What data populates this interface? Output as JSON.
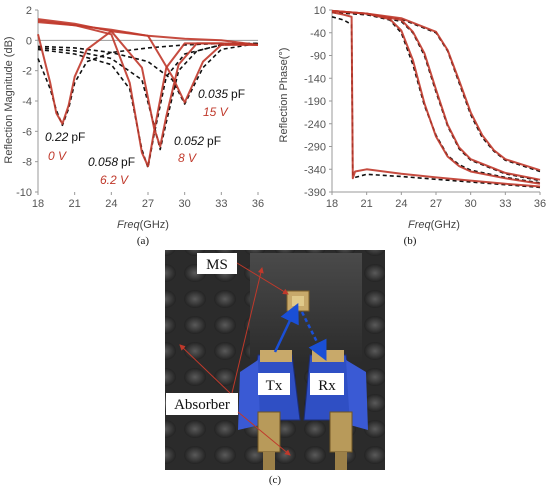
{
  "colors": {
    "measured": "#c0392b",
    "simulated": "#111111",
    "arrow": "#1a4fd6",
    "annot_red": "#c0392b"
  },
  "panel_a": {
    "caption": "(a)",
    "ylabel": "Reflection Magnitude (dB)",
    "xlabel_italic": "Freq",
    "xlabel_unit": "(GHz)",
    "annotations": [
      {
        "cap": "0.22",
        "unit": "pF",
        "volt": "0 V"
      },
      {
        "cap": "0.058",
        "unit": "pF",
        "volt": "6.2 V"
      },
      {
        "cap": "0.052",
        "unit": "pF",
        "volt": "8 V"
      },
      {
        "cap": "0.035",
        "unit": "pF",
        "volt": "15 V"
      }
    ]
  },
  "panel_b": {
    "caption": "(b)",
    "ylabel": "Reflection Phase(°)",
    "xlabel_italic": "Freq",
    "xlabel_unit": "(GHz)"
  },
  "panel_c": {
    "caption": "(c)",
    "labels": {
      "ms": "MS",
      "tx": "Tx",
      "rx": "Rx",
      "absorber": "Absorber"
    }
  },
  "chart_data": [
    {
      "type": "line",
      "panel": "a",
      "xlabel": "Freq(GHz)",
      "ylabel": "Reflection Magnitude (dB)",
      "xlim": [
        18,
        36
      ],
      "ylim": [
        -10,
        2
      ],
      "xticks": [
        18,
        21,
        24,
        27,
        30,
        33,
        36
      ],
      "yticks": [
        2,
        0,
        -2,
        -4,
        -6,
        -8,
        -10
      ],
      "grid": false,
      "series": [
        {
          "kind": "simulated",
          "x": [
            18,
            19,
            19.5,
            20,
            20.5,
            21,
            22,
            24,
            27,
            30,
            33,
            36
          ],
          "y": [
            -1.2,
            -3.2,
            -4.6,
            -5.6,
            -4.5,
            -2.8,
            -1.4,
            -0.8,
            -0.5,
            -0.3,
            -0.2,
            -0.2
          ]
        },
        {
          "kind": "simulated",
          "x": [
            18,
            21,
            24,
            25.5,
            26.5,
            27,
            27.5,
            28.5,
            30,
            33,
            36
          ],
          "y": [
            -0.6,
            -0.9,
            -1.6,
            -3.2,
            -7.2,
            -8.4,
            -6.2,
            -2.4,
            -0.9,
            -0.3,
            -0.2
          ]
        },
        {
          "kind": "simulated",
          "x": [
            18,
            21,
            24,
            26.5,
            27.5,
            28,
            28.5,
            29.5,
            31,
            33,
            36
          ],
          "y": [
            -0.5,
            -0.7,
            -1.2,
            -2.6,
            -5.6,
            -7.2,
            -5.4,
            -2.0,
            -0.7,
            -0.3,
            -0.2
          ]
        },
        {
          "kind": "simulated",
          "x": [
            18,
            21,
            24,
            27,
            29,
            30,
            30.5,
            31.5,
            33,
            36
          ],
          "y": [
            -0.4,
            -0.5,
            -0.8,
            -1.4,
            -2.6,
            -4.2,
            -3.4,
            -1.8,
            -0.6,
            -0.2
          ]
        },
        {
          "kind": "measured",
          "x": [
            18,
            19,
            19.5,
            20,
            20.5,
            21,
            22,
            24,
            27,
            30,
            33,
            36
          ],
          "y": [
            0.4,
            -2.8,
            -4.8,
            -5.5,
            -4.3,
            -2.4,
            -0.6,
            0.6,
            0.3,
            0.1,
            0,
            -0.3
          ]
        },
        {
          "kind": "measured",
          "x": [
            18,
            21,
            24,
            25.5,
            26.5,
            27,
            27.5,
            28.5,
            30,
            33,
            36
          ],
          "y": [
            1.3,
            1.0,
            0.4,
            -2.8,
            -7.4,
            -8.3,
            -6.0,
            -1.8,
            -0.2,
            -0.2,
            -0.3
          ]
        },
        {
          "kind": "measured",
          "x": [
            18,
            21,
            24,
            26.5,
            27.5,
            28,
            28.5,
            29.5,
            31,
            33,
            36
          ],
          "y": [
            1.4,
            1.1,
            0.6,
            -1.8,
            -5.8,
            -7.0,
            -5.0,
            -1.6,
            -0.2,
            -0.2,
            -0.3
          ]
        },
        {
          "kind": "measured",
          "x": [
            18,
            21,
            24,
            27,
            29,
            30,
            30.5,
            31.5,
            33,
            36
          ],
          "y": [
            1.2,
            1.0,
            0.7,
            0.3,
            -2.4,
            -4.1,
            -3.2,
            -1.4,
            -0.3,
            -0.3
          ]
        }
      ]
    },
    {
      "type": "line",
      "panel": "b",
      "xlabel": "Freq(GHz)",
      "ylabel": "Reflection Phase(°)",
      "xlim": [
        18,
        36
      ],
      "ylim": [
        -390,
        10
      ],
      "xticks": [
        18,
        21,
        24,
        27,
        30,
        33,
        36
      ],
      "yticks": [
        10,
        -40,
        -90,
        -140,
        -190,
        -240,
        -290,
        -340,
        -390
      ],
      "grid": false,
      "series": [
        {
          "kind": "simulated",
          "x": [
            18,
            19,
            19.7,
            19.8,
            20,
            21,
            24,
            27,
            30,
            33,
            36
          ],
          "y": [
            -5,
            -12,
            -22,
            -352,
            -358,
            -351,
            -356,
            -362,
            -368,
            -374,
            -380
          ]
        },
        {
          "kind": "simulated",
          "x": [
            18,
            21,
            23,
            24,
            25,
            26,
            27,
            28,
            29,
            30,
            33,
            36
          ],
          "y": [
            5,
            0,
            -12,
            -40,
            -110,
            -200,
            -265,
            -310,
            -330,
            -342,
            -358,
            -370
          ]
        },
        {
          "kind": "simulated",
          "x": [
            18,
            21,
            24,
            25,
            26,
            27,
            28,
            29,
            30,
            33,
            36
          ],
          "y": [
            5,
            0,
            -15,
            -40,
            -90,
            -170,
            -245,
            -295,
            -320,
            -350,
            -365
          ]
        },
        {
          "kind": "simulated",
          "x": [
            18,
            21,
            24,
            27,
            28,
            29,
            30,
            31,
            32,
            33,
            36
          ],
          "y": [
            5,
            0,
            -10,
            -40,
            -80,
            -150,
            -220,
            -270,
            -300,
            -320,
            -345
          ]
        },
        {
          "kind": "measured",
          "x": [
            18,
            19,
            19.7,
            19.8,
            20,
            21,
            24,
            27,
            30,
            33,
            36
          ],
          "y": [
            5,
            0,
            -5,
            -360,
            -345,
            -340,
            -350,
            -358,
            -365,
            -372,
            -378
          ]
        },
        {
          "kind": "measured",
          "x": [
            18,
            21,
            23,
            24,
            25,
            26,
            27,
            28,
            29,
            30,
            33,
            36
          ],
          "y": [
            8,
            2,
            -10,
            -35,
            -100,
            -195,
            -268,
            -312,
            -333,
            -345,
            -360,
            -372
          ]
        },
        {
          "kind": "measured",
          "x": [
            18,
            21,
            24,
            25,
            26,
            27,
            28,
            29,
            30,
            33,
            36
          ],
          "y": [
            8,
            2,
            -12,
            -38,
            -85,
            -165,
            -242,
            -292,
            -318,
            -348,
            -363
          ]
        },
        {
          "kind": "measured",
          "x": [
            18,
            21,
            24,
            27,
            28,
            29,
            30,
            31,
            32,
            33,
            36
          ],
          "y": [
            8,
            2,
            -8,
            -38,
            -78,
            -145,
            -215,
            -265,
            -298,
            -318,
            -342
          ]
        }
      ]
    }
  ]
}
